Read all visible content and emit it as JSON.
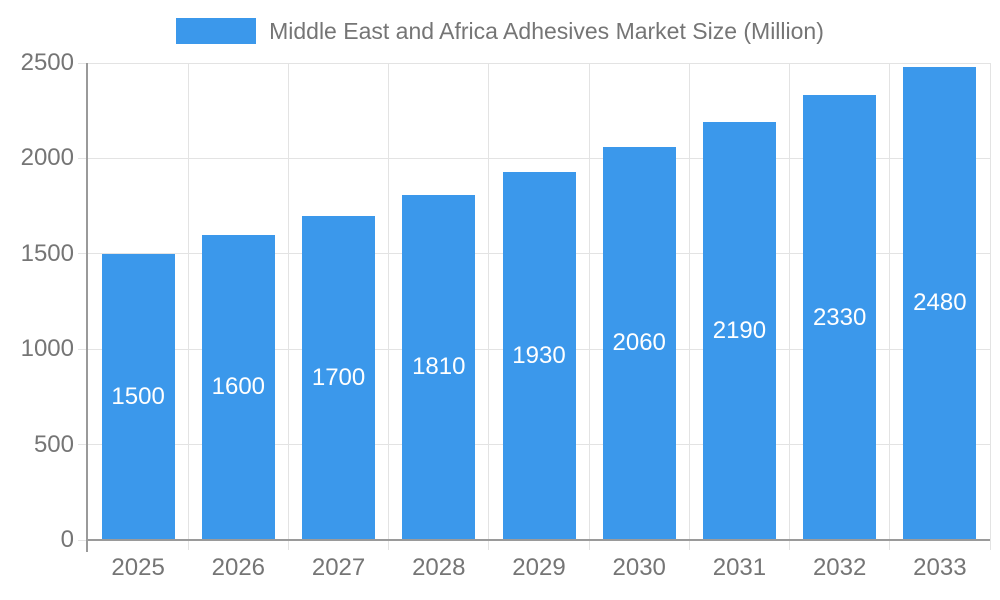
{
  "chart_data": {
    "type": "bar",
    "title": "Middle East and Africa Adhesives Market Size (Million)",
    "categories": [
      "2025",
      "2026",
      "2027",
      "2028",
      "2029",
      "2030",
      "2031",
      "2032",
      "2033"
    ],
    "values": [
      1500,
      1600,
      1700,
      1810,
      1930,
      2060,
      2190,
      2330,
      2480
    ],
    "xlabel": "",
    "ylabel": "",
    "ylim": [
      0,
      2500
    ],
    "yticks": [
      0,
      500,
      1000,
      1500,
      2000,
      2500
    ],
    "grid": "on",
    "legend_position": "top",
    "bar_color": "#3B98EB",
    "bar_label_color": "#ffffff",
    "axis_text_color": "#757575",
    "grid_color": "#e3e3e3",
    "axis_line_color": "#9a9a9a",
    "background_color": "#ffffff"
  }
}
